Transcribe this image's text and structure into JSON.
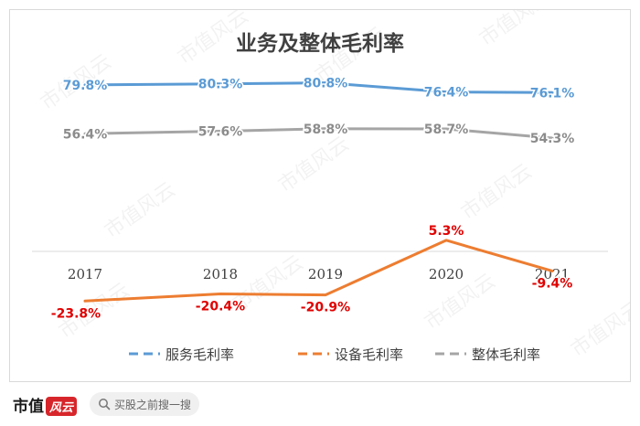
{
  "chart_data": {
    "type": "line",
    "title": "业务及整体毛利率",
    "categories": [
      "2017",
      "2018",
      "2019",
      "2020",
      "2021"
    ],
    "ylim": [
      -25,
      85
    ],
    "baseline": 0,
    "series": [
      {
        "name": "服务毛利率",
        "values": [
          79.8,
          80.3,
          80.8,
          76.4,
          76.1
        ],
        "labels": [
          "79.8%",
          "80.3%",
          "80.8%",
          "76.4%",
          "76.1%"
        ],
        "color": "#5b9bd5",
        "label_color": "#5b9bd5"
      },
      {
        "name": "设备毛利率",
        "values": [
          -23.8,
          -20.4,
          -20.9,
          5.3,
          -9.4
        ],
        "labels": [
          "-23.8%",
          "-20.4%",
          "-20.9%",
          "5.3%",
          "-9.4%"
        ],
        "color": "#ed7d31",
        "label_color": "#e00000"
      },
      {
        "name": "整体毛利率",
        "values": [
          56.4,
          57.6,
          58.8,
          58.7,
          54.3
        ],
        "labels": [
          "56.4%",
          "57.6%",
          "58.8%",
          "58.7%",
          "54.3%"
        ],
        "color": "#a5a5a5",
        "label_color": "#8c8c8c"
      }
    ],
    "legend_position": "bottom"
  },
  "watermark": "市值风云",
  "footer": {
    "logo_text": "市值",
    "logo_mark": "风云",
    "search_text": "买股之前搜一搜",
    "search_icon": "magnifier-icon"
  }
}
